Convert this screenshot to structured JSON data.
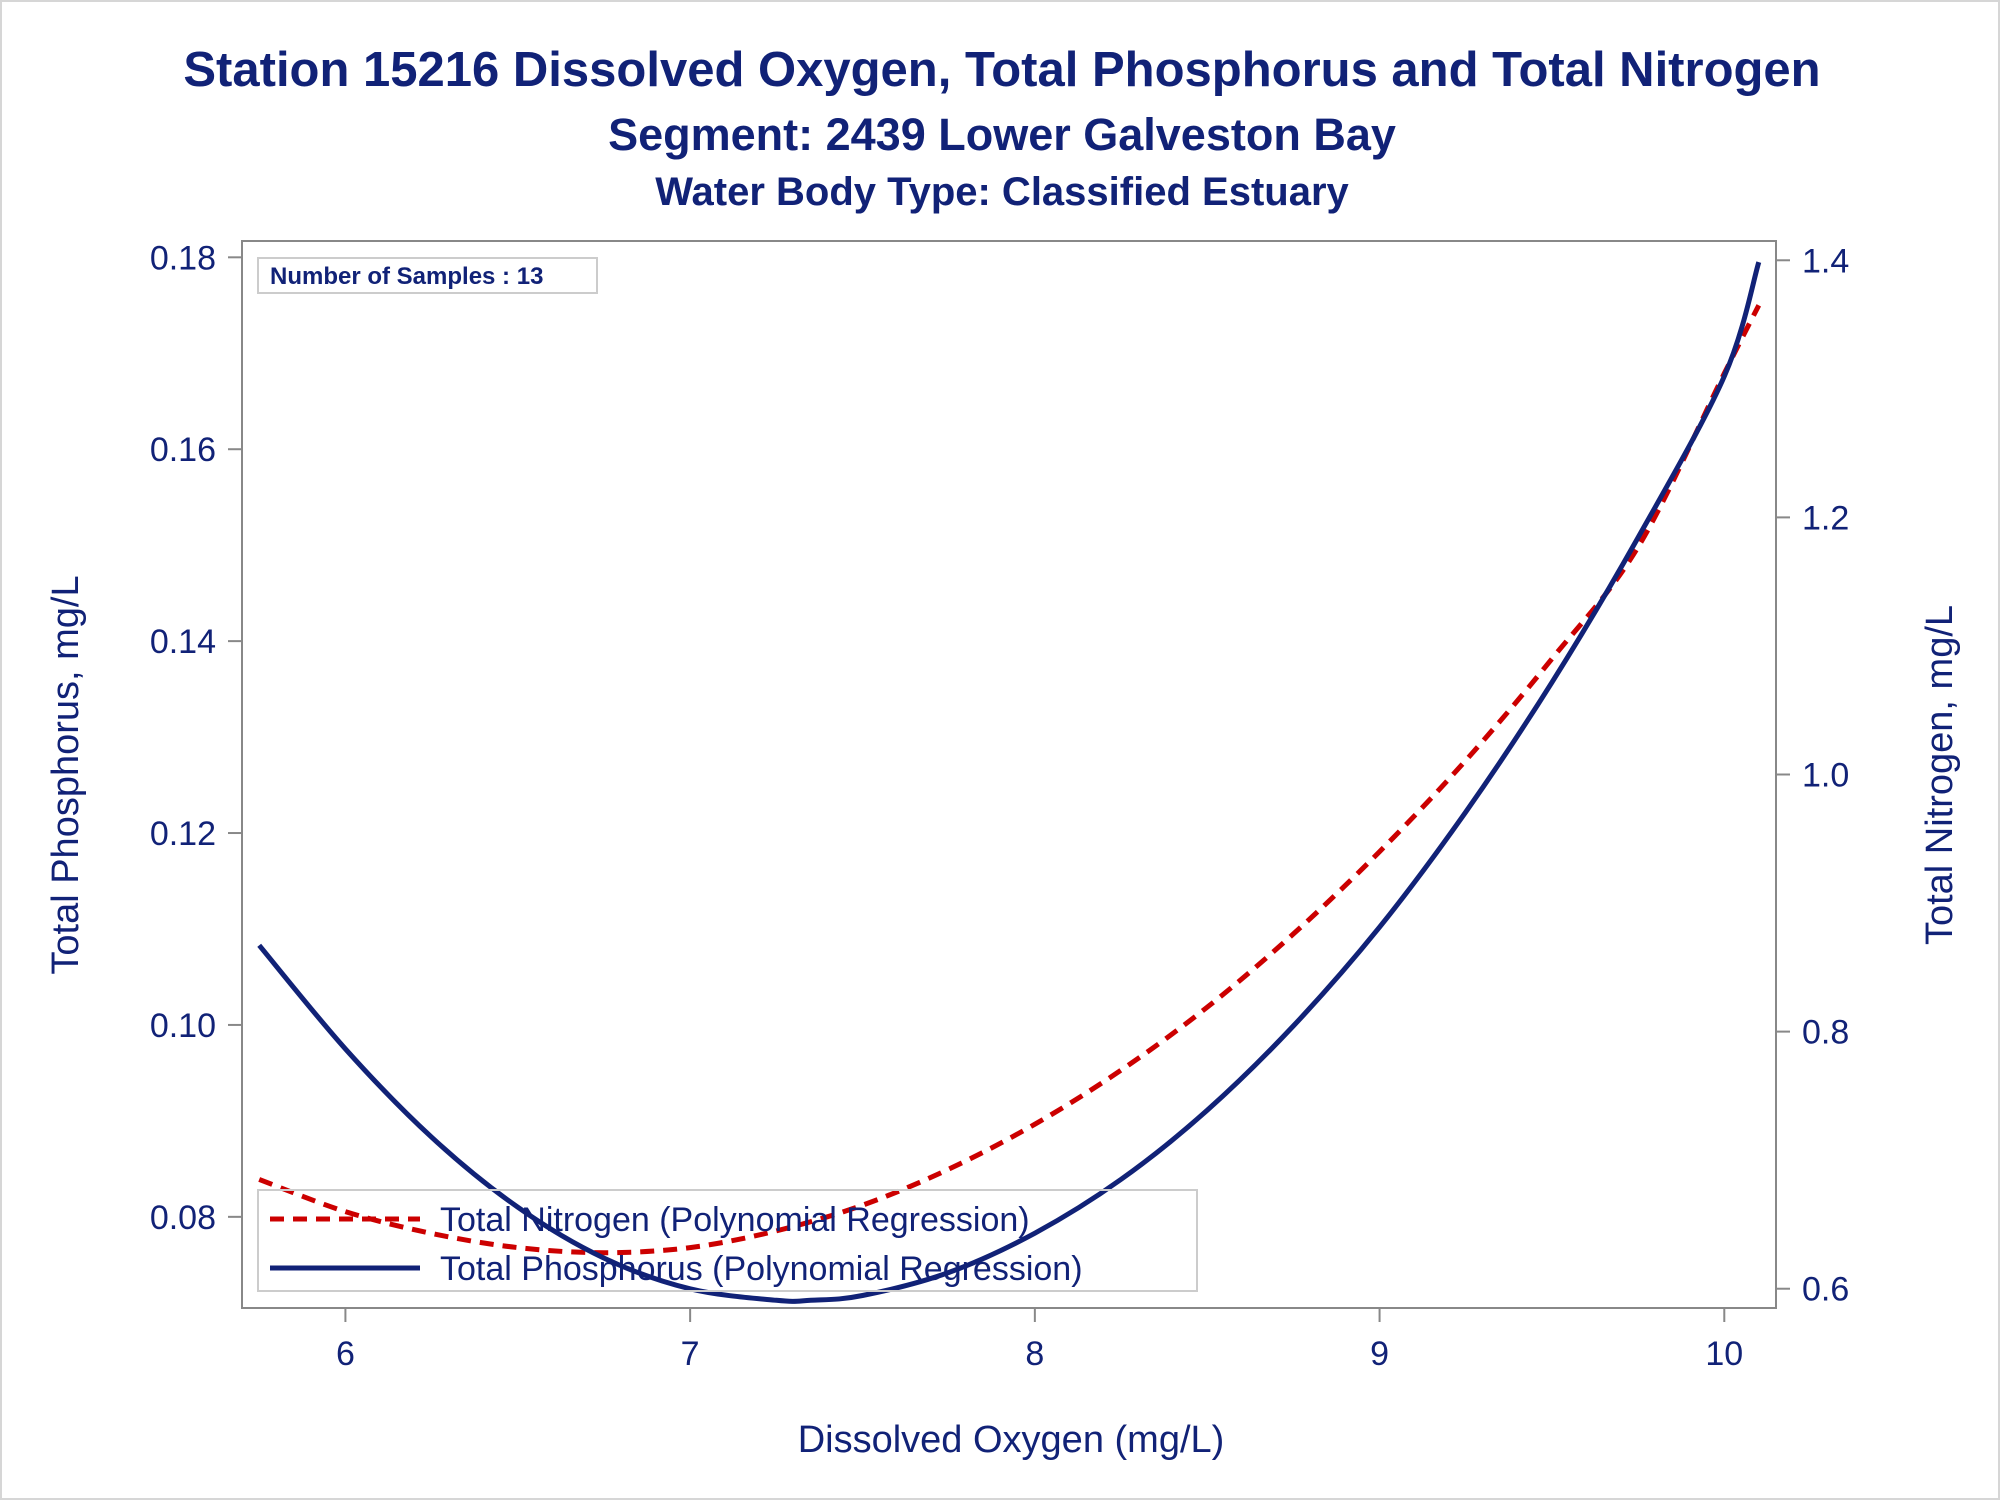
{
  "chart_data": {
    "type": "line",
    "title": "Station 15216  Dissolved Oxygen, Total Phosphorus and Total Nitrogen",
    "subtitle": "Segment: 2439  Lower Galveston Bay",
    "subtitle2": "Water Body Type: Classified Estuary",
    "xlabel": "Dissolved Oxygen (mg/L)",
    "ylabel": "Total Phosphorus, mg/L",
    "y2label": "Total Nitrogen, mg/L",
    "xlim": [
      5.7,
      10.15
    ],
    "ylim": [
      0.0705,
      0.1817
    ],
    "y2lim": [
      0.585,
      1.415
    ],
    "xticks": [
      "6",
      "7",
      "8",
      "9",
      "10"
    ],
    "yticks": [
      "0.08",
      "0.10",
      "0.12",
      "0.14",
      "0.16",
      "0.18"
    ],
    "y2ticks": [
      "0.6",
      "0.8",
      "1.0",
      "1.2",
      "1.4"
    ],
    "annotation": "Number of Samples : 13",
    "legend_position": "bottom-left",
    "grid": false,
    "series": [
      {
        "name": "Total Nitrogen (Polynomial Regression)",
        "axis": "right",
        "style": "dashed",
        "color": "#cc0000",
        "x": [
          5.75,
          6.0,
          6.25,
          6.5,
          6.75,
          7.0,
          7.25,
          7.5,
          7.75,
          8.0,
          8.25,
          8.5,
          8.75,
          9.0,
          9.25,
          9.5,
          9.75,
          10.0,
          10.1
        ],
        "y": [
          0.685,
          0.66,
          0.643,
          0.632,
          0.628,
          0.632,
          0.645,
          0.665,
          0.693,
          0.728,
          0.77,
          0.819,
          0.876,
          0.94,
          1.011,
          1.09,
          1.177,
          1.312,
          1.365
        ]
      },
      {
        "name": "Total Phosphorus (Polynomial Regression)",
        "axis": "left",
        "style": "solid",
        "color": "#112277",
        "x": [
          5.75,
          6.0,
          6.25,
          6.5,
          6.75,
          7.0,
          7.25,
          7.35,
          7.5,
          7.75,
          8.0,
          8.25,
          8.5,
          8.75,
          9.0,
          9.25,
          9.5,
          9.75,
          10.0,
          10.1
        ],
        "y": [
          0.1083,
          0.0975,
          0.0883,
          0.081,
          0.0757,
          0.0725,
          0.0713,
          0.0713,
          0.0718,
          0.0742,
          0.0783,
          0.0839,
          0.0911,
          0.0999,
          0.1102,
          0.1222,
          0.1357,
          0.1508,
          0.1676,
          0.1795
        ]
      }
    ]
  }
}
